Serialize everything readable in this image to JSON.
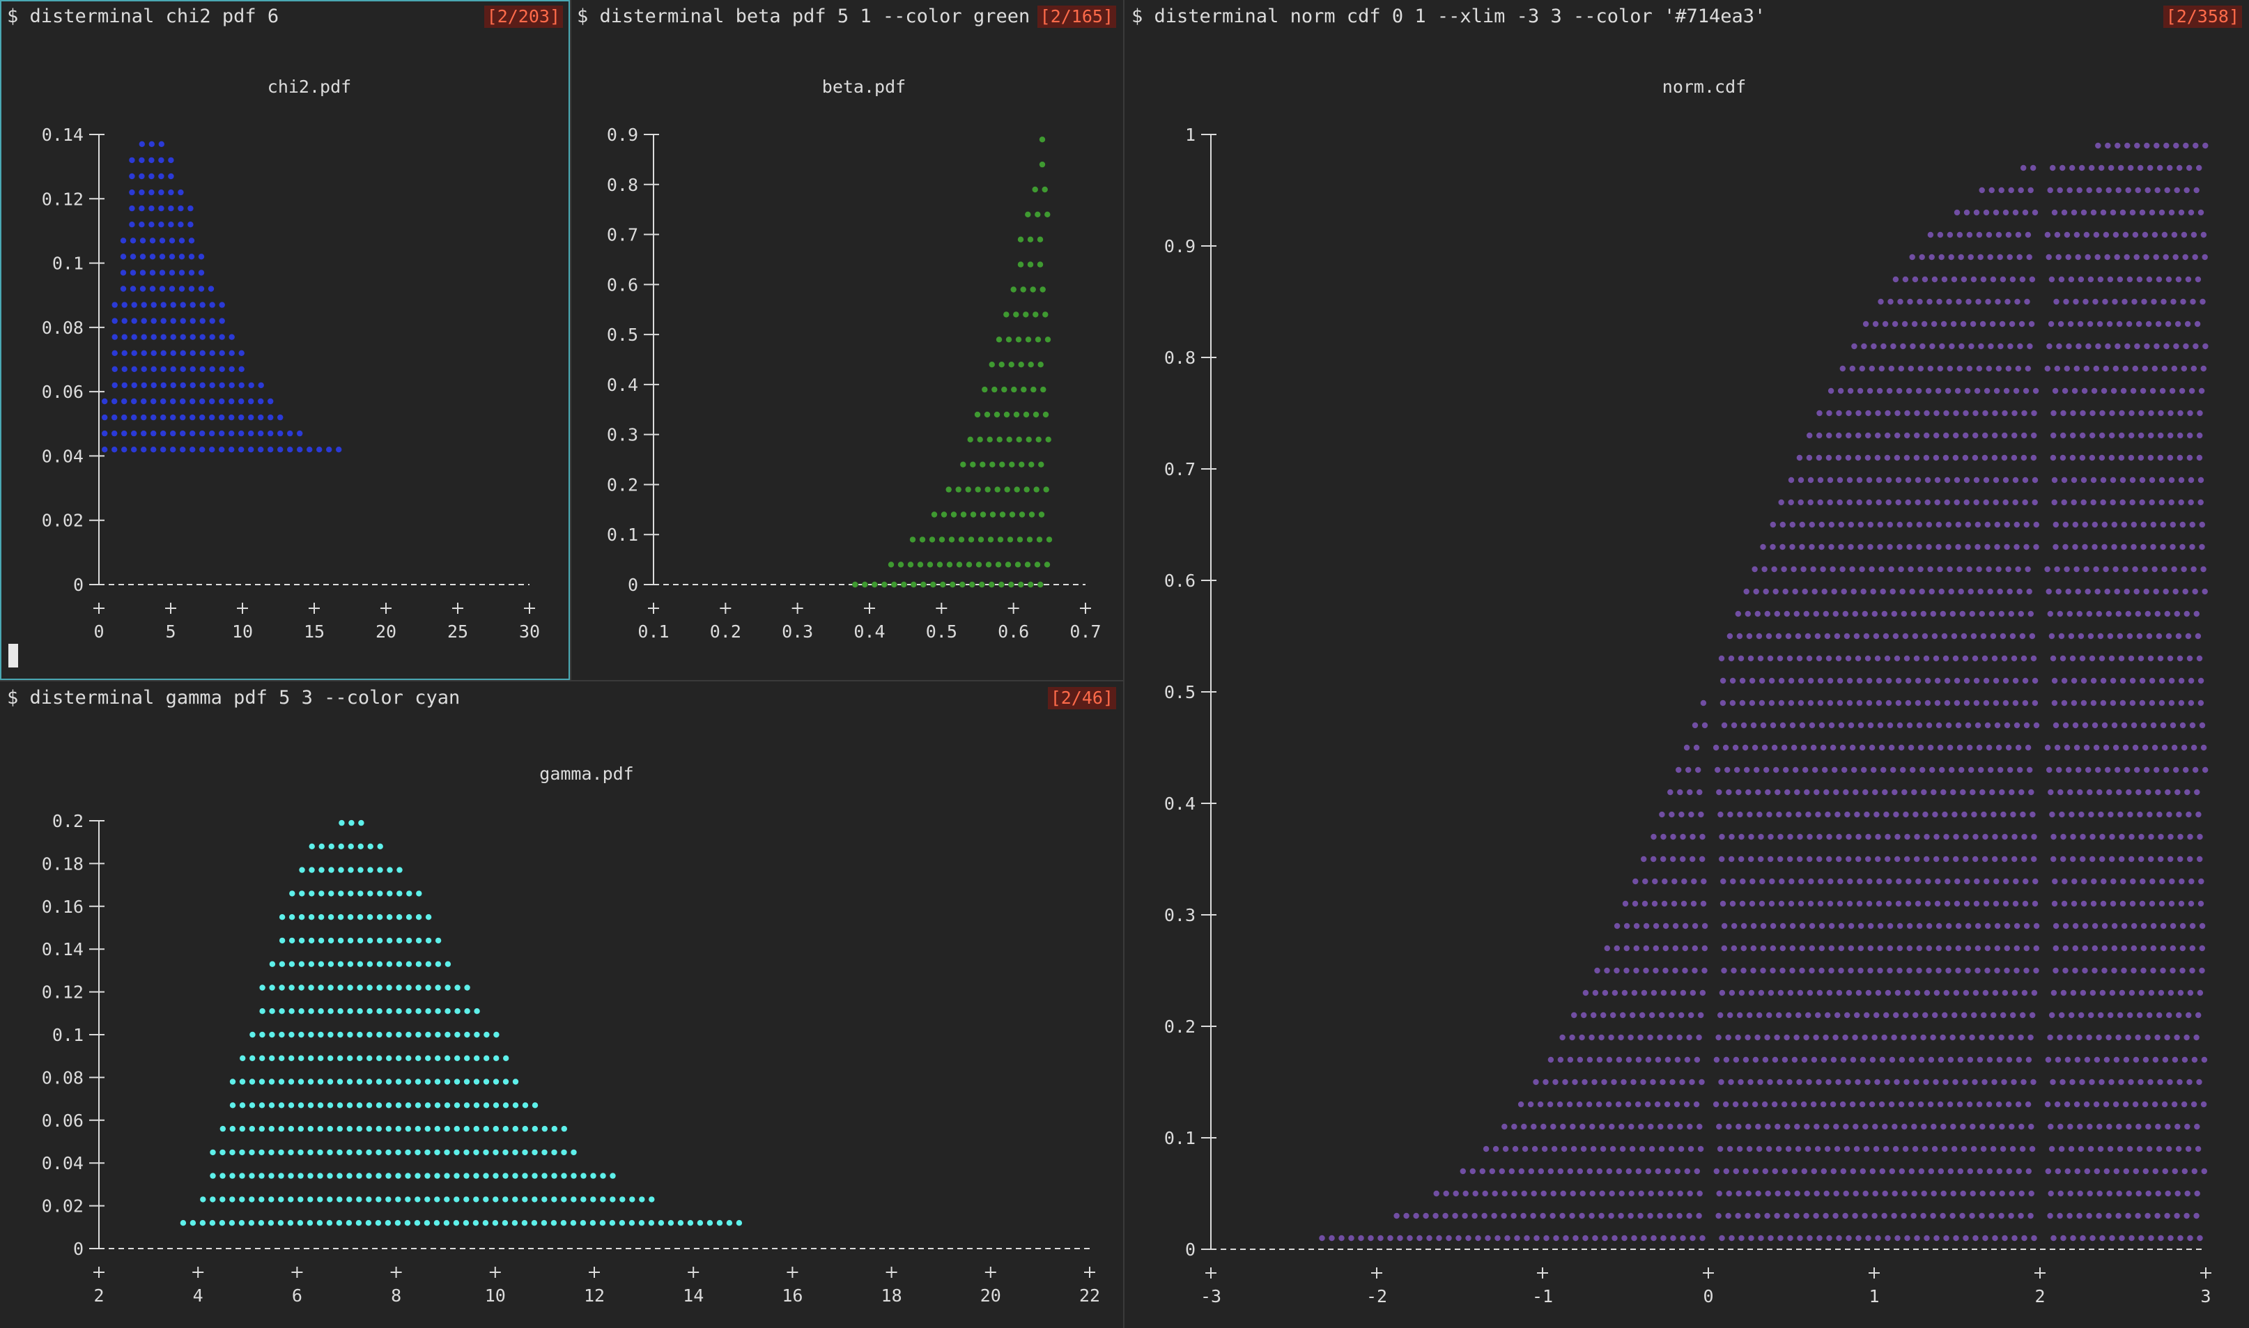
{
  "panes": [
    {
      "id": "chi2",
      "command": "$ disterminal chi2 pdf 6",
      "history_badge": "[2/203]",
      "active": true
    },
    {
      "id": "beta",
      "command": "$ disterminal beta pdf 5 1 --color green",
      "history_badge": "[2/165]",
      "active": false
    },
    {
      "id": "norm",
      "command": "$ disterminal norm cdf 0 1 --xlim -3 3 --color '#714ea3'",
      "history_badge": "[2/358]",
      "active": false
    },
    {
      "id": "gamma",
      "command": "$ disterminal gamma pdf 5 3 --color cyan",
      "history_badge": "[2/46]",
      "active": false
    }
  ],
  "chart_data": [
    {
      "type": "bar",
      "title": "chi2.pdf",
      "color": "#2b3ad6",
      "xlim": [
        0,
        30
      ],
      "ylim": [
        0,
        0.14
      ],
      "x_ticks": [
        "0",
        "5",
        "10",
        "15",
        "20",
        "25",
        "30"
      ],
      "y_ticks": [
        "0.14",
        "0.12",
        "0.1",
        "0.08",
        "0.06",
        "0.04",
        "0.02",
        "0"
      ],
      "rows": [
        {
          "y": 0.137,
          "x_start": 3.0,
          "x_end": 5.0
        },
        {
          "y": 0.132,
          "x_start": 2.3,
          "x_end": 5.3
        },
        {
          "y": 0.127,
          "x_start": 2.3,
          "x_end": 5.3
        },
        {
          "y": 0.122,
          "x_start": 2.3,
          "x_end": 6.0
        },
        {
          "y": 0.117,
          "x_start": 2.3,
          "x_end": 6.6
        },
        {
          "y": 0.112,
          "x_start": 2.3,
          "x_end": 6.6
        },
        {
          "y": 0.107,
          "x_start": 1.7,
          "x_end": 6.6
        },
        {
          "y": 0.102,
          "x_start": 1.7,
          "x_end": 7.3
        },
        {
          "y": 0.097,
          "x_start": 1.7,
          "x_end": 7.3
        },
        {
          "y": 0.092,
          "x_start": 1.7,
          "x_end": 8.0
        },
        {
          "y": 0.087,
          "x_start": 1.1,
          "x_end": 8.6
        },
        {
          "y": 0.082,
          "x_start": 1.1,
          "x_end": 8.6
        },
        {
          "y": 0.077,
          "x_start": 1.1,
          "x_end": 9.3
        },
        {
          "y": 0.072,
          "x_start": 1.1,
          "x_end": 10.0
        },
        {
          "y": 0.067,
          "x_start": 1.1,
          "x_end": 10.6
        },
        {
          "y": 0.062,
          "x_start": 1.1,
          "x_end": 11.3
        },
        {
          "y": 0.057,
          "x_start": 0.4,
          "x_end": 12.0
        },
        {
          "y": 0.052,
          "x_start": 0.4,
          "x_end": 13.3
        },
        {
          "y": 0.047,
          "x_start": 0.4,
          "x_end": 14.6
        },
        {
          "y": 0.042,
          "x_start": 0.4,
          "x_end": 17.3
        }
      ]
    },
    {
      "type": "bar",
      "title": "beta.pdf",
      "color": "#3f9a31",
      "xlim": [
        0.1,
        0.7
      ],
      "ylim": [
        0,
        0.9
      ],
      "x_ticks": [
        "0.1",
        "0.2",
        "0.3",
        "0.4",
        "0.5",
        "0.6",
        "0.7"
      ],
      "y_ticks": [
        "0.9",
        "0.8",
        "0.7",
        "0.6",
        "0.5",
        "0.4",
        "0.3",
        "0.2",
        "0.1",
        "0"
      ],
      "rows": [
        {
          "y": 0.89,
          "x_start": 0.64,
          "x_end": 0.65
        },
        {
          "y": 0.84,
          "x_start": 0.64,
          "x_end": 0.65
        },
        {
          "y": 0.79,
          "x_start": 0.63,
          "x_end": 0.65
        },
        {
          "y": 0.74,
          "x_start": 0.62,
          "x_end": 0.65
        },
        {
          "y": 0.69,
          "x_start": 0.61,
          "x_end": 0.65
        },
        {
          "y": 0.64,
          "x_start": 0.61,
          "x_end": 0.65
        },
        {
          "y": 0.59,
          "x_start": 0.6,
          "x_end": 0.65
        },
        {
          "y": 0.54,
          "x_start": 0.59,
          "x_end": 0.65
        },
        {
          "y": 0.49,
          "x_start": 0.58,
          "x_end": 0.65
        },
        {
          "y": 0.44,
          "x_start": 0.57,
          "x_end": 0.65
        },
        {
          "y": 0.39,
          "x_start": 0.56,
          "x_end": 0.65
        },
        {
          "y": 0.34,
          "x_start": 0.55,
          "x_end": 0.65
        },
        {
          "y": 0.29,
          "x_start": 0.54,
          "x_end": 0.65
        },
        {
          "y": 0.24,
          "x_start": 0.53,
          "x_end": 0.65
        },
        {
          "y": 0.19,
          "x_start": 0.51,
          "x_end": 0.65
        },
        {
          "y": 0.14,
          "x_start": 0.49,
          "x_end": 0.65
        },
        {
          "y": 0.09,
          "x_start": 0.46,
          "x_end": 0.65
        },
        {
          "y": 0.04,
          "x_start": 0.43,
          "x_end": 0.65
        },
        {
          "y": 0.0,
          "x_start": 0.38,
          "x_end": 0.65
        }
      ]
    },
    {
      "type": "bar",
      "title": "norm.cdf",
      "color": "#714ea3",
      "xlim": [
        -3,
        3
      ],
      "ylim": [
        0,
        1
      ],
      "x_ticks": [
        "-3",
        "-2",
        "-1",
        "0",
        "1",
        "2",
        "3"
      ],
      "y_ticks": [
        "1",
        "0.9",
        "0.8",
        "0.7",
        "0.6",
        "0.5",
        "0.4",
        "0.3",
        "0.2",
        "0.1",
        "0"
      ],
      "gaps": [
        [
          -0.02,
          0.04
        ],
        [
          1.98,
          2.04
        ]
      ],
      "rows": [
        {
          "y": 0.99,
          "x_start": 2.35,
          "x_end": 3.0
        },
        {
          "y": 0.97,
          "x_start": 1.9,
          "x_end": 3.0
        },
        {
          "y": 0.95,
          "x_start": 1.65,
          "x_end": 3.0
        },
        {
          "y": 0.93,
          "x_start": 1.5,
          "x_end": 3.0
        },
        {
          "y": 0.91,
          "x_start": 1.34,
          "x_end": 3.0
        },
        {
          "y": 0.89,
          "x_start": 1.23,
          "x_end": 3.0
        },
        {
          "y": 0.87,
          "x_start": 1.13,
          "x_end": 3.0
        },
        {
          "y": 0.85,
          "x_start": 1.04,
          "x_end": 3.0
        },
        {
          "y": 0.83,
          "x_start": 0.95,
          "x_end": 3.0
        },
        {
          "y": 0.81,
          "x_start": 0.88,
          "x_end": 3.0
        },
        {
          "y": 0.79,
          "x_start": 0.81,
          "x_end": 3.0
        },
        {
          "y": 0.77,
          "x_start": 0.74,
          "x_end": 3.0
        },
        {
          "y": 0.75,
          "x_start": 0.67,
          "x_end": 3.0
        },
        {
          "y": 0.73,
          "x_start": 0.61,
          "x_end": 3.0
        },
        {
          "y": 0.71,
          "x_start": 0.55,
          "x_end": 3.0
        },
        {
          "y": 0.69,
          "x_start": 0.5,
          "x_end": 3.0
        },
        {
          "y": 0.67,
          "x_start": 0.44,
          "x_end": 3.0
        },
        {
          "y": 0.65,
          "x_start": 0.39,
          "x_end": 3.0
        },
        {
          "y": 0.63,
          "x_start": 0.33,
          "x_end": 3.0
        },
        {
          "y": 0.61,
          "x_start": 0.28,
          "x_end": 3.0
        },
        {
          "y": 0.59,
          "x_start": 0.23,
          "x_end": 3.0
        },
        {
          "y": 0.57,
          "x_start": 0.18,
          "x_end": 3.0
        },
        {
          "y": 0.55,
          "x_start": 0.13,
          "x_end": 3.0
        },
        {
          "y": 0.53,
          "x_start": 0.08,
          "x_end": 3.0
        },
        {
          "y": 0.51,
          "x_start": 0.03,
          "x_end": 3.0
        },
        {
          "y": 0.49,
          "x_start": -0.03,
          "x_end": 3.0
        },
        {
          "y": 0.47,
          "x_start": -0.08,
          "x_end": 3.0
        },
        {
          "y": 0.45,
          "x_start": -0.13,
          "x_end": 3.0
        },
        {
          "y": 0.43,
          "x_start": -0.18,
          "x_end": 3.0
        },
        {
          "y": 0.41,
          "x_start": -0.23,
          "x_end": 3.0
        },
        {
          "y": 0.39,
          "x_start": -0.28,
          "x_end": 3.0
        },
        {
          "y": 0.37,
          "x_start": -0.33,
          "x_end": 3.0
        },
        {
          "y": 0.35,
          "x_start": -0.39,
          "x_end": 3.0
        },
        {
          "y": 0.33,
          "x_start": -0.44,
          "x_end": 3.0
        },
        {
          "y": 0.31,
          "x_start": -0.5,
          "x_end": 3.0
        },
        {
          "y": 0.29,
          "x_start": -0.55,
          "x_end": 3.0
        },
        {
          "y": 0.27,
          "x_start": -0.61,
          "x_end": 3.0
        },
        {
          "y": 0.25,
          "x_start": -0.67,
          "x_end": 3.0
        },
        {
          "y": 0.23,
          "x_start": -0.74,
          "x_end": 3.0
        },
        {
          "y": 0.21,
          "x_start": -0.81,
          "x_end": 3.0
        },
        {
          "y": 0.19,
          "x_start": -0.88,
          "x_end": 3.0
        },
        {
          "y": 0.17,
          "x_start": -0.95,
          "x_end": 3.0
        },
        {
          "y": 0.15,
          "x_start": -1.04,
          "x_end": 3.0
        },
        {
          "y": 0.13,
          "x_start": -1.13,
          "x_end": 3.0
        },
        {
          "y": 0.11,
          "x_start": -1.23,
          "x_end": 3.0
        },
        {
          "y": 0.09,
          "x_start": -1.34,
          "x_end": 3.0
        },
        {
          "y": 0.07,
          "x_start": -1.48,
          "x_end": 3.0
        },
        {
          "y": 0.05,
          "x_start": -1.64,
          "x_end": 3.0
        },
        {
          "y": 0.03,
          "x_start": -1.88,
          "x_end": 3.0
        },
        {
          "y": 0.01,
          "x_start": -2.33,
          "x_end": 3.0
        }
      ]
    },
    {
      "type": "bar",
      "title": "gamma.pdf",
      "color": "#5ef0ea",
      "xlim": [
        2,
        22
      ],
      "ylim": [
        0,
        0.2
      ],
      "x_ticks": [
        "2",
        "4",
        "6",
        "8",
        "10",
        "12",
        "14",
        "16",
        "18",
        "20",
        "22"
      ],
      "y_ticks": [
        "0.2",
        "0.18",
        "0.16",
        "0.14",
        "0.12",
        "0.1",
        "0.08",
        "0.06",
        "0.04",
        "0.02",
        "0"
      ],
      "y_tick_values": [
        0.2,
        0.18,
        0.16,
        0.14,
        0.12,
        0.1,
        0.08,
        0.06,
        0.04,
        0.02,
        0
      ],
      "rows": [
        {
          "y": 0.199,
          "x_start": 6.9,
          "x_end": 7.3
        },
        {
          "y": 0.188,
          "x_start": 6.3,
          "x_end": 7.7
        },
        {
          "y": 0.177,
          "x_start": 6.1,
          "x_end": 8.1
        },
        {
          "y": 0.166,
          "x_start": 5.9,
          "x_end": 8.5
        },
        {
          "y": 0.155,
          "x_start": 5.7,
          "x_end": 8.7
        },
        {
          "y": 0.144,
          "x_start": 5.7,
          "x_end": 8.9
        },
        {
          "y": 0.133,
          "x_start": 5.5,
          "x_end": 9.1
        },
        {
          "y": 0.122,
          "x_start": 5.3,
          "x_end": 9.5
        },
        {
          "y": 0.111,
          "x_start": 5.3,
          "x_end": 9.7
        },
        {
          "y": 0.1,
          "x_start": 5.1,
          "x_end": 10.1
        },
        {
          "y": 0.089,
          "x_start": 4.9,
          "x_end": 10.3
        },
        {
          "y": 0.078,
          "x_start": 4.7,
          "x_end": 10.5
        },
        {
          "y": 0.067,
          "x_start": 4.7,
          "x_end": 10.9
        },
        {
          "y": 0.056,
          "x_start": 4.5,
          "x_end": 11.5
        },
        {
          "y": 0.045,
          "x_start": 4.3,
          "x_end": 11.7
        },
        {
          "y": 0.034,
          "x_start": 4.3,
          "x_end": 12.5
        },
        {
          "y": 0.023,
          "x_start": 4.1,
          "x_end": 13.3
        },
        {
          "y": 0.012,
          "x_start": 3.7,
          "x_end": 15.1
        }
      ]
    }
  ]
}
